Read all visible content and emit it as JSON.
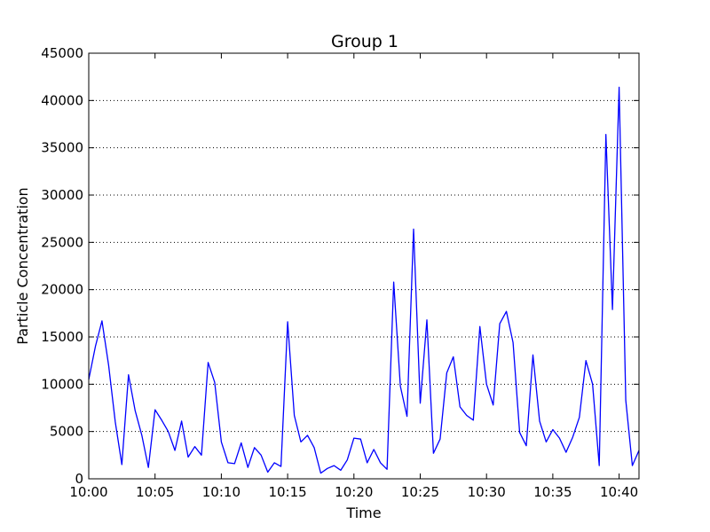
{
  "chart_data": {
    "type": "line",
    "title": "Group 1",
    "xlabel": "Time",
    "ylabel": "Particle Concentration",
    "xlim": [
      "10:00",
      "10:41:30"
    ],
    "ylim": [
      0,
      45000
    ],
    "y_ticks": [
      0,
      5000,
      10000,
      15000,
      20000,
      25000,
      30000,
      35000,
      40000,
      45000
    ],
    "x_ticks": [
      "10:00",
      "10:05",
      "10:10",
      "10:15",
      "10:20",
      "10:25",
      "10:30",
      "10:35",
      "10:40"
    ],
    "grid": "horizontal dotted",
    "legend": "none",
    "series": [
      {
        "color": "#0000ff",
        "points": [
          [
            "10:00:00",
            10500
          ],
          [
            "10:00:30",
            14000
          ],
          [
            "10:01:00",
            16700
          ],
          [
            "10:01:30",
            12000
          ],
          [
            "10:02:00",
            6000
          ],
          [
            "10:02:30",
            1500
          ],
          [
            "10:03:00",
            11000
          ],
          [
            "10:03:30",
            7200
          ],
          [
            "10:04:00",
            4600
          ],
          [
            "10:04:30",
            1200
          ],
          [
            "10:05:00",
            7300
          ],
          [
            "10:05:30",
            6200
          ],
          [
            "10:06:00",
            5000
          ],
          [
            "10:06:30",
            3000
          ],
          [
            "10:07:00",
            6100
          ],
          [
            "10:07:30",
            2300
          ],
          [
            "10:08:00",
            3400
          ],
          [
            "10:08:30",
            2500
          ],
          [
            "10:09:00",
            12300
          ],
          [
            "10:09:30",
            10200
          ],
          [
            "10:10:00",
            3900
          ],
          [
            "10:10:30",
            1700
          ],
          [
            "10:11:00",
            1600
          ],
          [
            "10:11:30",
            3800
          ],
          [
            "10:12:00",
            1200
          ],
          [
            "10:12:30",
            3300
          ],
          [
            "10:13:00",
            2500
          ],
          [
            "10:13:30",
            700
          ],
          [
            "10:14:00",
            1700
          ],
          [
            "10:14:30",
            1300
          ],
          [
            "10:15:00",
            16600
          ],
          [
            "10:15:30",
            6700
          ],
          [
            "10:16:00",
            3900
          ],
          [
            "10:16:30",
            4600
          ],
          [
            "10:17:00",
            3300
          ],
          [
            "10:17:30",
            600
          ],
          [
            "10:18:00",
            1100
          ],
          [
            "10:18:30",
            1400
          ],
          [
            "10:19:00",
            900
          ],
          [
            "10:19:30",
            2000
          ],
          [
            "10:20:00",
            4300
          ],
          [
            "10:20:30",
            4200
          ],
          [
            "10:21:00",
            1700
          ],
          [
            "10:21:30",
            3100
          ],
          [
            "10:22:00",
            1700
          ],
          [
            "10:22:30",
            1000
          ],
          [
            "10:23:00",
            20800
          ],
          [
            "10:23:30",
            9800
          ],
          [
            "10:24:00",
            6600
          ],
          [
            "10:24:30",
            26400
          ],
          [
            "10:25:00",
            8000
          ],
          [
            "10:25:30",
            16800
          ],
          [
            "10:26:00",
            2700
          ],
          [
            "10:26:30",
            4200
          ],
          [
            "10:27:00",
            11200
          ],
          [
            "10:27:30",
            12900
          ],
          [
            "10:28:00",
            7600
          ],
          [
            "10:28:30",
            6700
          ],
          [
            "10:29:00",
            6200
          ],
          [
            "10:29:30",
            16100
          ],
          [
            "10:30:00",
            10000
          ],
          [
            "10:30:30",
            7800
          ],
          [
            "10:31:00",
            16400
          ],
          [
            "10:31:30",
            17700
          ],
          [
            "10:32:00",
            14400
          ],
          [
            "10:32:30",
            4900
          ],
          [
            "10:33:00",
            3500
          ],
          [
            "10:33:30",
            13100
          ],
          [
            "10:34:00",
            6100
          ],
          [
            "10:34:30",
            3900
          ],
          [
            "10:35:00",
            5200
          ],
          [
            "10:35:30",
            4300
          ],
          [
            "10:36:00",
            2800
          ],
          [
            "10:36:30",
            4400
          ],
          [
            "10:37:00",
            6500
          ],
          [
            "10:37:30",
            12500
          ],
          [
            "10:38:00",
            10000
          ],
          [
            "10:38:30",
            1400
          ],
          [
            "10:39:00",
            36400
          ],
          [
            "10:39:30",
            17900
          ],
          [
            "10:40:00",
            41400
          ],
          [
            "10:40:30",
            8300
          ],
          [
            "10:41:00",
            1400
          ],
          [
            "10:41:30",
            3000
          ]
        ]
      }
    ]
  }
}
